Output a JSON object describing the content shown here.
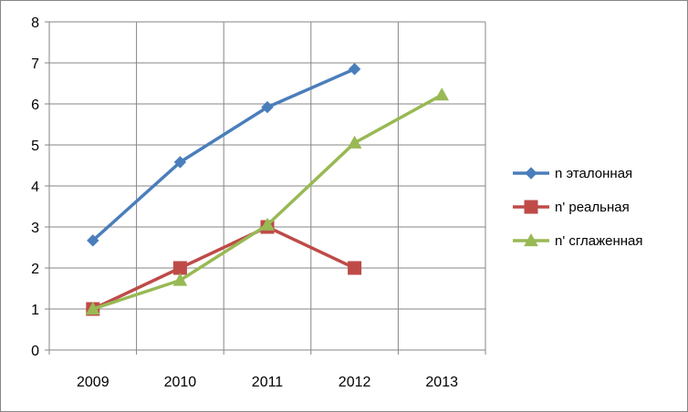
{
  "chart_data": {
    "type": "line",
    "title": "",
    "xlabel": "",
    "ylabel": "",
    "categories": [
      "2009",
      "2010",
      "2011",
      "2012",
      "2013"
    ],
    "ylim": [
      0,
      8
    ],
    "yticks": [
      0,
      1,
      2,
      3,
      4,
      5,
      6,
      7,
      8
    ],
    "grid": true,
    "legend_position": "right",
    "series": [
      {
        "name": "n эталонная",
        "color": "#4a7ebb",
        "marker": "diamond",
        "values": [
          2.67,
          4.58,
          5.92,
          6.85,
          null
        ]
      },
      {
        "name": "n' реальная",
        "color": "#be4b48",
        "marker": "square",
        "values": [
          1,
          2,
          3,
          2,
          null
        ]
      },
      {
        "name": "n' сглаженная",
        "color": "#98b954",
        "marker": "triangle",
        "values": [
          1,
          1.7,
          3.05,
          5.05,
          6.22
        ]
      }
    ]
  }
}
